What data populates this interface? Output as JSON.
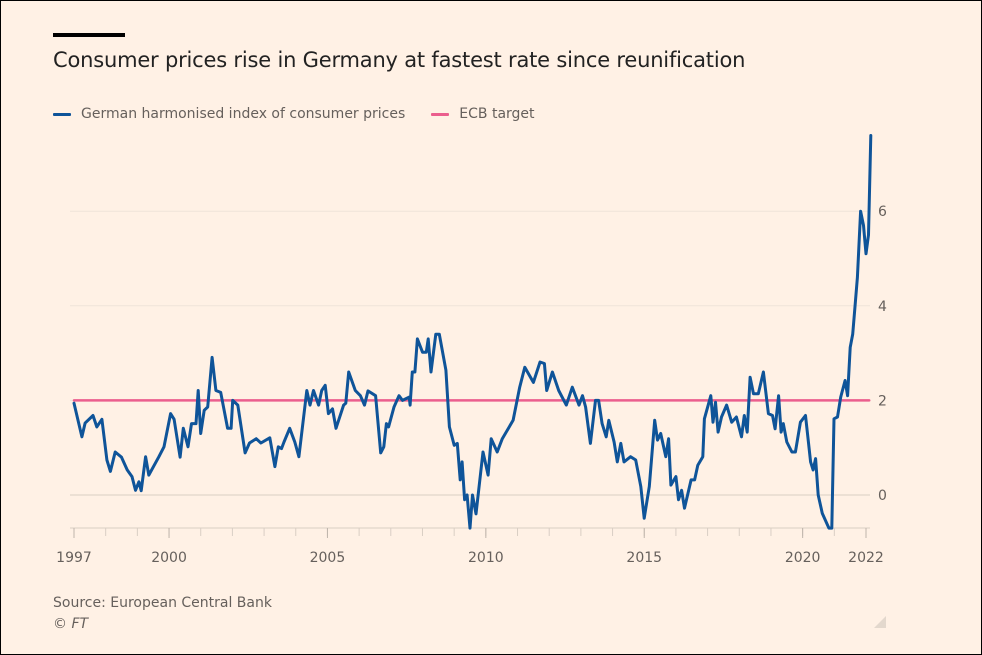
{
  "chart_data": {
    "type": "line",
    "title": "Consumer prices rise in Germany at fastest rate since reunification",
    "xlabel": "",
    "ylabel": "",
    "xlim": [
      1997,
      2022.2
    ],
    "ylim": [
      -0.7,
      7.6
    ],
    "x_ticks": [
      1997,
      2000,
      2005,
      2010,
      2015,
      2020,
      2022
    ],
    "x_tick_labels": [
      "1997",
      "2000",
      "2005",
      "2010",
      "2015",
      "2020",
      "2022"
    ],
    "y_ticks": [
      0,
      2,
      4,
      6
    ],
    "y_tick_labels": [
      "0",
      "2",
      "4",
      "6"
    ],
    "grid": true,
    "legend_position": "top-left",
    "series": [
      {
        "name": "German harmonised index of consumer prices",
        "color": "#0f5499",
        "points": [
          [
            1997.0,
            1.94
          ],
          [
            1997.25,
            1.23
          ],
          [
            1997.35,
            1.52
          ],
          [
            1997.6,
            1.68
          ],
          [
            1997.72,
            1.44
          ],
          [
            1997.88,
            1.6
          ],
          [
            1998.04,
            0.74
          ],
          [
            1998.15,
            0.5
          ],
          [
            1998.3,
            0.91
          ],
          [
            1998.5,
            0.8
          ],
          [
            1998.68,
            0.53
          ],
          [
            1998.83,
            0.39
          ],
          [
            1998.94,
            0.1
          ],
          [
            1999.05,
            0.28
          ],
          [
            1999.12,
            0.09
          ],
          [
            1999.26,
            0.81
          ],
          [
            1999.36,
            0.42
          ],
          [
            1999.68,
            0.81
          ],
          [
            1999.84,
            1.02
          ],
          [
            2000.05,
            1.72
          ],
          [
            2000.16,
            1.6
          ],
          [
            2000.35,
            0.8
          ],
          [
            2000.45,
            1.41
          ],
          [
            2000.6,
            1.02
          ],
          [
            2000.71,
            1.51
          ],
          [
            2000.85,
            1.51
          ],
          [
            2000.92,
            2.21
          ],
          [
            2001.0,
            1.3
          ],
          [
            2001.11,
            1.79
          ],
          [
            2001.22,
            1.86
          ],
          [
            2001.36,
            2.91
          ],
          [
            2001.48,
            2.21
          ],
          [
            2001.63,
            2.17
          ],
          [
            2001.85,
            1.41
          ],
          [
            2001.96,
            1.41
          ],
          [
            2002.01,
            2.0
          ],
          [
            2002.17,
            1.9
          ],
          [
            2002.4,
            0.89
          ],
          [
            2002.54,
            1.1
          ],
          [
            2002.75,
            1.19
          ],
          [
            2002.9,
            1.1
          ],
          [
            2003.18,
            1.21
          ],
          [
            2003.34,
            0.6
          ],
          [
            2003.45,
            1.02
          ],
          [
            2003.55,
            0.98
          ],
          [
            2003.63,
            1.12
          ],
          [
            2003.81,
            1.41
          ],
          [
            2003.97,
            1.12
          ],
          [
            2004.1,
            0.81
          ],
          [
            2004.35,
            2.21
          ],
          [
            2004.45,
            1.9
          ],
          [
            2004.56,
            2.21
          ],
          [
            2004.72,
            1.9
          ],
          [
            2004.82,
            2.21
          ],
          [
            2004.93,
            2.32
          ],
          [
            2005.03,
            1.72
          ],
          [
            2005.16,
            1.82
          ],
          [
            2005.27,
            1.41
          ],
          [
            2005.51,
            1.9
          ],
          [
            2005.58,
            1.94
          ],
          [
            2005.67,
            2.6
          ],
          [
            2005.88,
            2.21
          ],
          [
            2006.04,
            2.1
          ],
          [
            2006.17,
            1.9
          ],
          [
            2006.28,
            2.2
          ],
          [
            2006.52,
            2.1
          ],
          [
            2006.68,
            0.89
          ],
          [
            2006.78,
            1.02
          ],
          [
            2006.86,
            1.51
          ],
          [
            2006.93,
            1.44
          ],
          [
            2007.1,
            1.86
          ],
          [
            2007.26,
            2.1
          ],
          [
            2007.37,
            2.0
          ],
          [
            2007.58,
            2.07
          ],
          [
            2007.61,
            1.9
          ],
          [
            2007.68,
            2.6
          ],
          [
            2007.76,
            2.6
          ],
          [
            2007.84,
            3.3
          ],
          [
            2008.0,
            3.02
          ],
          [
            2008.12,
            3.02
          ],
          [
            2008.18,
            3.3
          ],
          [
            2008.27,
            2.6
          ],
          [
            2008.42,
            3.4
          ],
          [
            2008.53,
            3.4
          ],
          [
            2008.74,
            2.64
          ],
          [
            2008.85,
            1.44
          ],
          [
            2009.0,
            1.05
          ],
          [
            2009.1,
            1.09
          ],
          [
            2009.19,
            0.32
          ],
          [
            2009.25,
            0.7
          ],
          [
            2009.33,
            -0.1
          ],
          [
            2009.41,
            0.0
          ],
          [
            2009.5,
            -0.7
          ],
          [
            2009.58,
            0.0
          ],
          [
            2009.69,
            -0.4
          ],
          [
            2009.91,
            0.91
          ],
          [
            2010.07,
            0.42
          ],
          [
            2010.17,
            1.19
          ],
          [
            2010.36,
            0.91
          ],
          [
            2010.52,
            1.19
          ],
          [
            2010.86,
            1.58
          ],
          [
            2011.07,
            2.28
          ],
          [
            2011.23,
            2.7
          ],
          [
            2011.5,
            2.38
          ],
          [
            2011.71,
            2.81
          ],
          [
            2011.85,
            2.78
          ],
          [
            2011.92,
            2.21
          ],
          [
            2012.1,
            2.6
          ],
          [
            2012.3,
            2.21
          ],
          [
            2012.54,
            1.9
          ],
          [
            2012.73,
            2.28
          ],
          [
            2012.94,
            1.9
          ],
          [
            2013.05,
            2.1
          ],
          [
            2013.15,
            1.86
          ],
          [
            2013.3,
            1.09
          ],
          [
            2013.46,
            2.0
          ],
          [
            2013.56,
            2.0
          ],
          [
            2013.67,
            1.51
          ],
          [
            2013.8,
            1.23
          ],
          [
            2013.88,
            1.58
          ],
          [
            2014.05,
            1.12
          ],
          [
            2014.15,
            0.7
          ],
          [
            2014.26,
            1.09
          ],
          [
            2014.36,
            0.7
          ],
          [
            2014.57,
            0.81
          ],
          [
            2014.73,
            0.74
          ],
          [
            2014.89,
            0.18
          ],
          [
            2015.0,
            -0.49
          ],
          [
            2015.16,
            0.18
          ],
          [
            2015.33,
            1.58
          ],
          [
            2015.42,
            1.16
          ],
          [
            2015.52,
            1.3
          ],
          [
            2015.68,
            0.81
          ],
          [
            2015.77,
            1.19
          ],
          [
            2015.84,
            0.21
          ],
          [
            2016.0,
            0.39
          ],
          [
            2016.08,
            -0.1
          ],
          [
            2016.18,
            0.1
          ],
          [
            2016.27,
            -0.28
          ],
          [
            2016.48,
            0.32
          ],
          [
            2016.59,
            0.32
          ],
          [
            2016.69,
            0.63
          ],
          [
            2016.85,
            0.81
          ],
          [
            2016.9,
            1.61
          ],
          [
            2017.1,
            2.1
          ],
          [
            2017.17,
            1.54
          ],
          [
            2017.25,
            1.96
          ],
          [
            2017.33,
            1.33
          ],
          [
            2017.44,
            1.65
          ],
          [
            2017.6,
            1.9
          ],
          [
            2017.76,
            1.54
          ],
          [
            2017.91,
            1.65
          ],
          [
            2018.07,
            1.23
          ],
          [
            2018.16,
            1.68
          ],
          [
            2018.25,
            1.33
          ],
          [
            2018.34,
            2.49
          ],
          [
            2018.45,
            2.14
          ],
          [
            2018.6,
            2.14
          ],
          [
            2018.76,
            2.6
          ],
          [
            2018.92,
            1.72
          ],
          [
            2019.05,
            1.68
          ],
          [
            2019.13,
            1.4
          ],
          [
            2019.24,
            2.1
          ],
          [
            2019.32,
            1.33
          ],
          [
            2019.39,
            1.51
          ],
          [
            2019.5,
            1.12
          ],
          [
            2019.66,
            0.91
          ],
          [
            2019.77,
            0.91
          ],
          [
            2019.93,
            1.54
          ],
          [
            2020.09,
            1.68
          ],
          [
            2020.25,
            0.7
          ],
          [
            2020.33,
            0.53
          ],
          [
            2020.41,
            0.77
          ],
          [
            2020.49,
            0.0
          ],
          [
            2020.62,
            -0.39
          ],
          [
            2020.83,
            -0.7
          ],
          [
            2020.92,
            -0.7
          ],
          [
            2020.99,
            1.61
          ],
          [
            2021.1,
            1.65
          ],
          [
            2021.2,
            2.07
          ],
          [
            2021.34,
            2.42
          ],
          [
            2021.42,
            2.1
          ],
          [
            2021.5,
            3.12
          ],
          [
            2021.58,
            3.4
          ],
          [
            2021.65,
            3.96
          ],
          [
            2021.73,
            4.6
          ],
          [
            2021.83,
            6.0
          ],
          [
            2021.92,
            5.7
          ],
          [
            2022.0,
            5.1
          ],
          [
            2022.08,
            5.5
          ],
          [
            2022.15,
            7.6
          ]
        ]
      },
      {
        "name": "ECB target",
        "color": "#eb5e8d",
        "points": [
          [
            1997.0,
            2.0
          ],
          [
            2022.1,
            2.0
          ]
        ]
      }
    ]
  },
  "source": "Source: European Central Bank",
  "credit": "© FT"
}
